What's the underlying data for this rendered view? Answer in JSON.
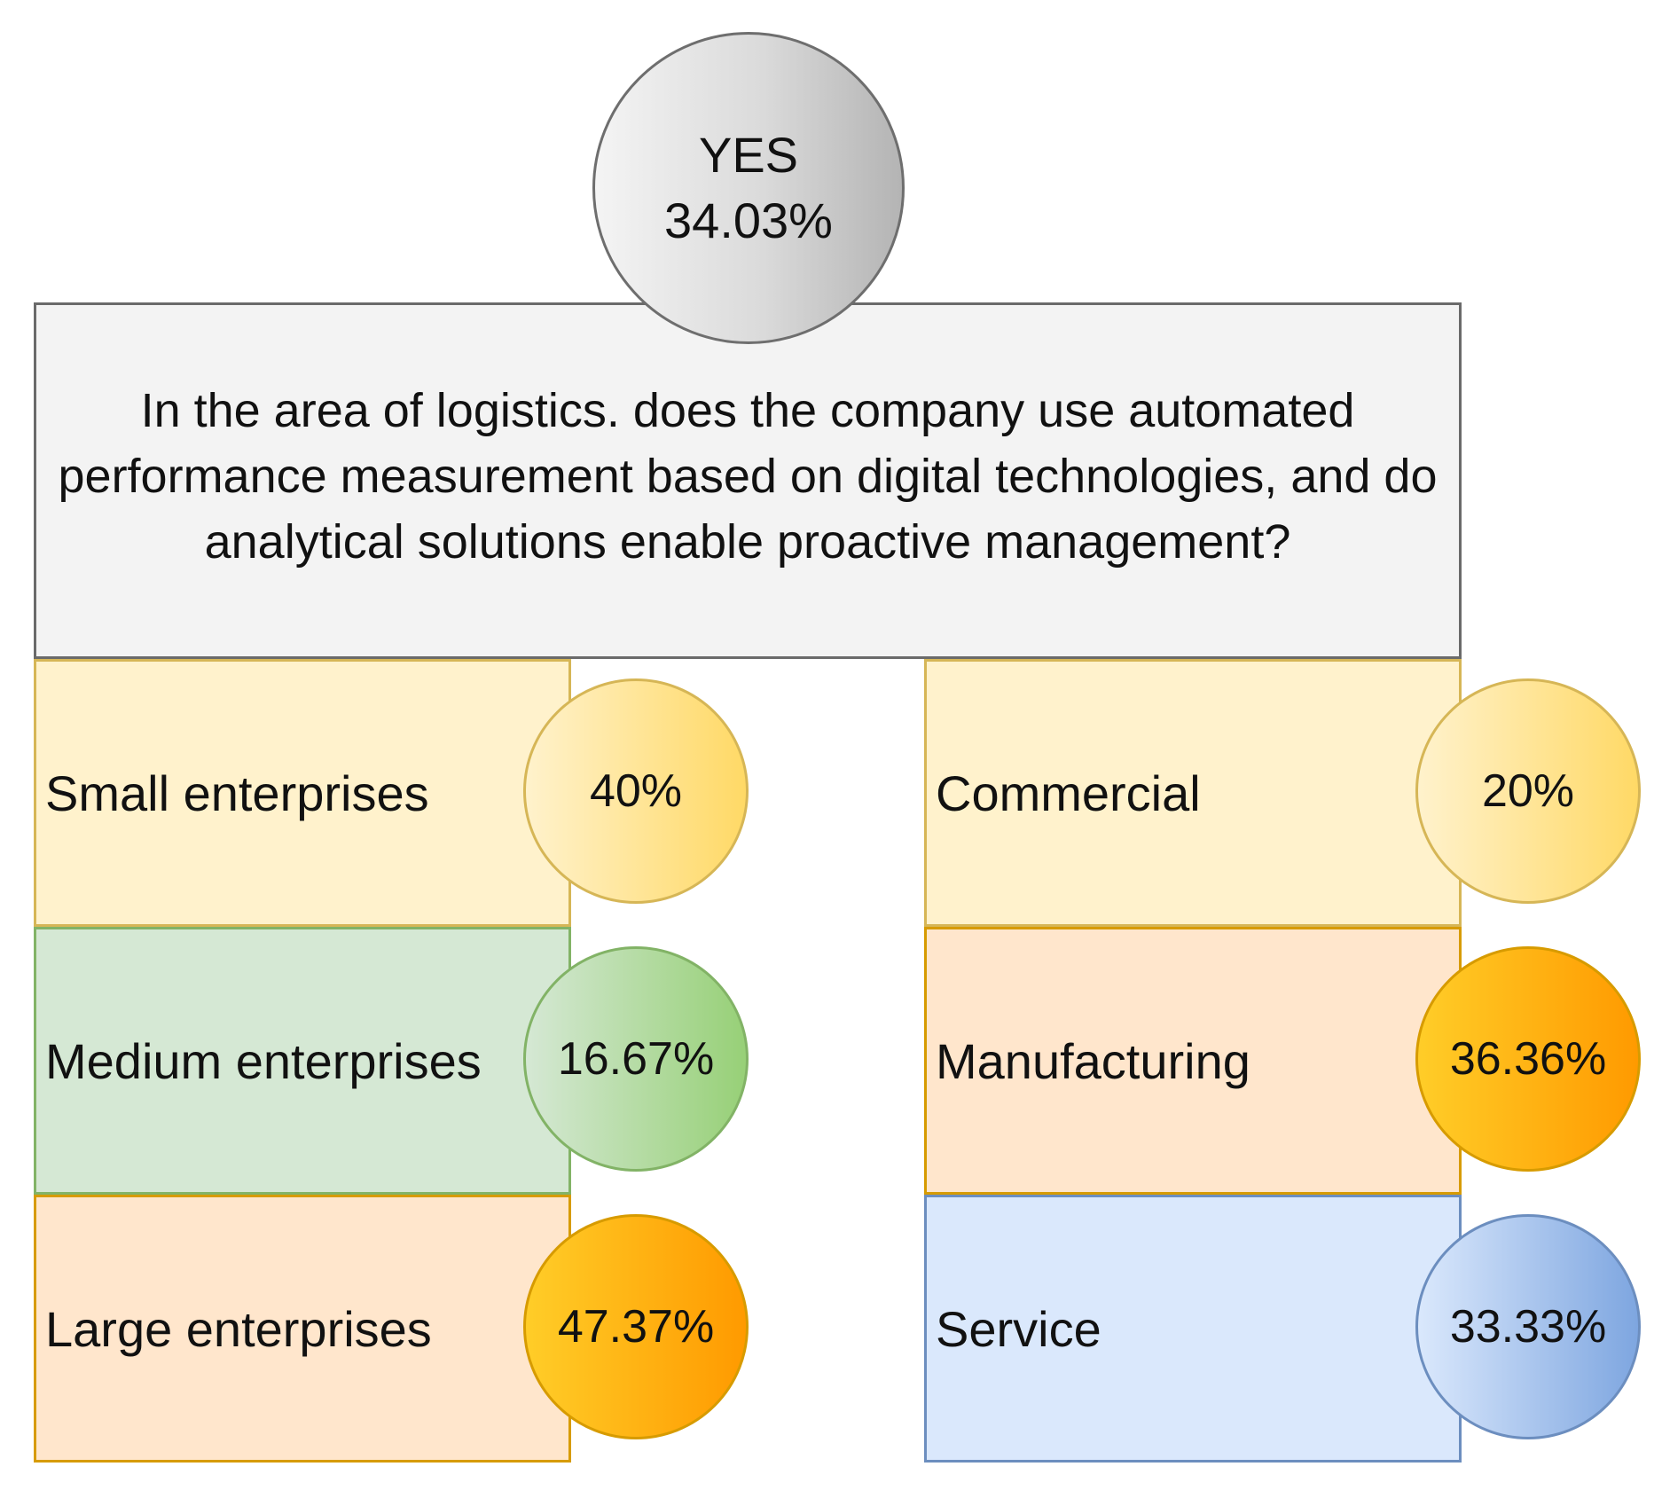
{
  "root": {
    "answer": "YES",
    "percent": "34.03%"
  },
  "question": {
    "text": "In the area of logistics. does the company use automated performance measurement based on digital technologies, and do analytical solutions enable proactive management?"
  },
  "size_groups": [
    {
      "label": "Small enterprises",
      "percent": "40%",
      "fill_color": "#fff2cc",
      "circle_color": "#ffd966"
    },
    {
      "label": "Medium enterprises",
      "percent": "16.67%",
      "fill_color": "#d5e8d4",
      "circle_color": "#97d077"
    },
    {
      "label": "Large enterprises",
      "percent": "47.37%",
      "fill_color": "#ffe6cc",
      "circle_color": "#ffa500"
    }
  ],
  "sector_groups": [
    {
      "label": "Commercial",
      "percent": "20%",
      "fill_color": "#fff2cc",
      "circle_color": "#ffd966"
    },
    {
      "label": "Manufacturing",
      "percent": "36.36%",
      "fill_color": "#ffe6cc",
      "circle_color": "#ffa500"
    },
    {
      "label": "Service",
      "percent": "33.33%",
      "fill_color": "#dae8fc",
      "circle_color": "#7ea6e0"
    }
  ]
}
